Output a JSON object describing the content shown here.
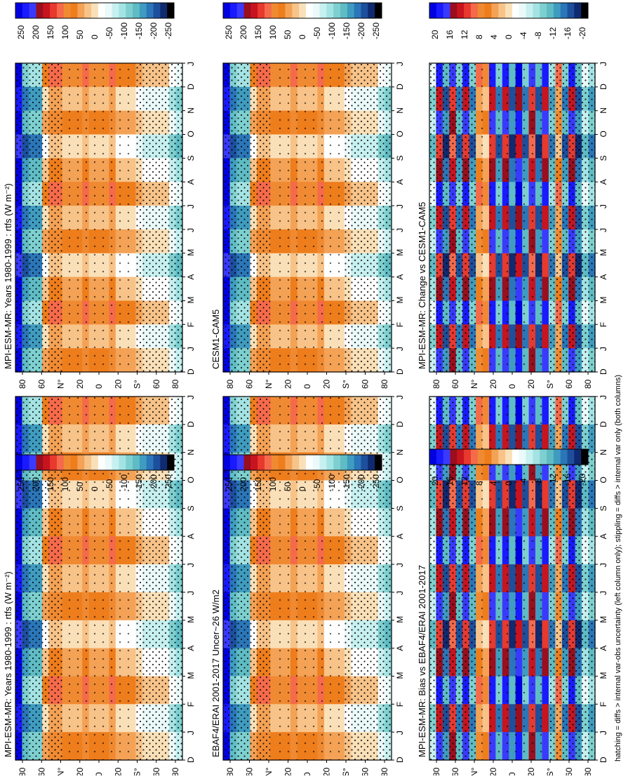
{
  "footer": "hatching = diffs > internal var-obs uncertainty (left column only); stippling = diffs > internal var only (both columns)",
  "palettes": {
    "field": [
      "#0000e0",
      "#1a1aff",
      "#3a3aff",
      "#9a0e1e",
      "#c8141e",
      "#e8392e",
      "#f56a4a",
      "#f08a32",
      "#ee7d1c",
      "#f3a256",
      "#f7c389",
      "#fae0b8",
      "#ffffff",
      "#eaf9f9",
      "#c7f0f0",
      "#a4e3e3",
      "#7ed0d0",
      "#5fbcc4",
      "#3f9cc0",
      "#2a76b8",
      "#1d4f9c",
      "#0f2a70",
      "#000000"
    ],
    "diff": [
      "#0000e0",
      "#1a1aff",
      "#3a3aff",
      "#9a0e1e",
      "#c8141e",
      "#e8392e",
      "#f56a4a",
      "#f08a32",
      "#ee7d1c",
      "#f3a256",
      "#f7c389",
      "#fae0b8",
      "#ffffff",
      "#eaf9f9",
      "#c7f0f0",
      "#a4e3e3",
      "#7ed0d0",
      "#5fbcc4",
      "#3f9cc0",
      "#2a76b8",
      "#1d4f9c",
      "#0f2a70",
      "#000000"
    ]
  },
  "chart_data": [
    {
      "type": "heatmap",
      "title": "MPI-ESM-MR: Years 1980-1999 : rtfs (W m⁻²)",
      "months": [
        "D",
        "J",
        "F",
        "M",
        "A",
        "M",
        "J",
        "J",
        "A",
        "S",
        "O",
        "N",
        "D",
        "J"
      ],
      "lat_labels": [
        "80",
        "60",
        "N°",
        "20",
        "0",
        "20",
        "S°",
        "60",
        "80"
      ],
      "colorbar_ticks": [
        "250",
        "200",
        "150",
        "100",
        "50",
        "0",
        "-50",
        "-100",
        "-150",
        "-200",
        "-250"
      ],
      "variant": "field",
      "scale_range": [
        -250,
        250
      ]
    },
    {
      "type": "heatmap",
      "title": "MPI-ESM-MR: Years 1980-1999 : rtfs (W m⁻²)",
      "months": [
        "D",
        "J",
        "F",
        "M",
        "A",
        "M",
        "J",
        "J",
        "A",
        "S",
        "O",
        "N",
        "D",
        "J"
      ],
      "lat_labels": [
        "80",
        "60",
        "N°",
        "20",
        "0",
        "20",
        "S°",
        "60",
        "80"
      ],
      "colorbar_ticks": [
        "250",
        "200",
        "150",
        "100",
        "50",
        "0",
        "-50",
        "-100",
        "-150",
        "-200",
        "-250"
      ],
      "variant": "field",
      "scale_range": [
        -250,
        250
      ]
    },
    {
      "type": "heatmap",
      "title": "CESM1-CAM5",
      "months": [
        "D",
        "J",
        "F",
        "M",
        "A",
        "M",
        "J",
        "J",
        "A",
        "S",
        "O",
        "N",
        "D",
        "J"
      ],
      "lat_labels": [
        "80",
        "60",
        "N°",
        "20",
        "0",
        "20",
        "S°",
        "60",
        "80"
      ],
      "colorbar_ticks": [
        "250",
        "200",
        "150",
        "100",
        "50",
        "0",
        "-50",
        "-100",
        "-150",
        "-200",
        "-250"
      ],
      "variant": "field",
      "scale_range": [
        -250,
        250
      ]
    },
    {
      "type": "heatmap",
      "title": "EBAF4/ERAI 2001-2017 Uncer~26 W/m2",
      "months": [
        "D",
        "J",
        "F",
        "M",
        "A",
        "M",
        "J",
        "J",
        "A",
        "S",
        "O",
        "N",
        "D",
        "J"
      ],
      "lat_labels": [
        "80",
        "60",
        "N°",
        "20",
        "0",
        "20",
        "S°",
        "60",
        "80"
      ],
      "colorbar_ticks": [
        "250",
        "200",
        "150",
        "100",
        "50",
        "0",
        "-50",
        "-100",
        "-150",
        "-200",
        "-250"
      ],
      "variant": "field",
      "scale_range": [
        -250,
        250
      ]
    },
    {
      "type": "heatmap",
      "title": "MPI-ESM-MR: Change vs CESM1-CAM5",
      "months": [
        "D",
        "J",
        "F",
        "M",
        "A",
        "M",
        "J",
        "J",
        "A",
        "S",
        "O",
        "N",
        "D",
        "J"
      ],
      "lat_labels": [
        "80",
        "60",
        "N°",
        "20",
        "0",
        "20",
        "S°",
        "60",
        "80"
      ],
      "colorbar_ticks": [
        "20",
        "16",
        "12",
        "8",
        "4",
        "0",
        "-4",
        "-8",
        "-12",
        "-16",
        "-20"
      ],
      "variant": "diff",
      "scale_range": [
        -20,
        20
      ]
    },
    {
      "type": "heatmap",
      "title": "MPI-ESM-MR: Bias vs EBAF4/ERAI 2001-2017",
      "months": [
        "D",
        "J",
        "F",
        "M",
        "A",
        "M",
        "J",
        "J",
        "A",
        "S",
        "O",
        "N",
        "D",
        "J"
      ],
      "lat_labels": [
        "80",
        "60",
        "N°",
        "20",
        "0",
        "20",
        "S°",
        "60",
        "80"
      ],
      "colorbar_ticks": [
        "20",
        "16",
        "12",
        "8",
        "4",
        "0",
        "-4",
        "-8",
        "-12",
        "-16",
        "-20"
      ],
      "variant": "diff",
      "scale_range": [
        -20,
        20
      ]
    }
  ]
}
